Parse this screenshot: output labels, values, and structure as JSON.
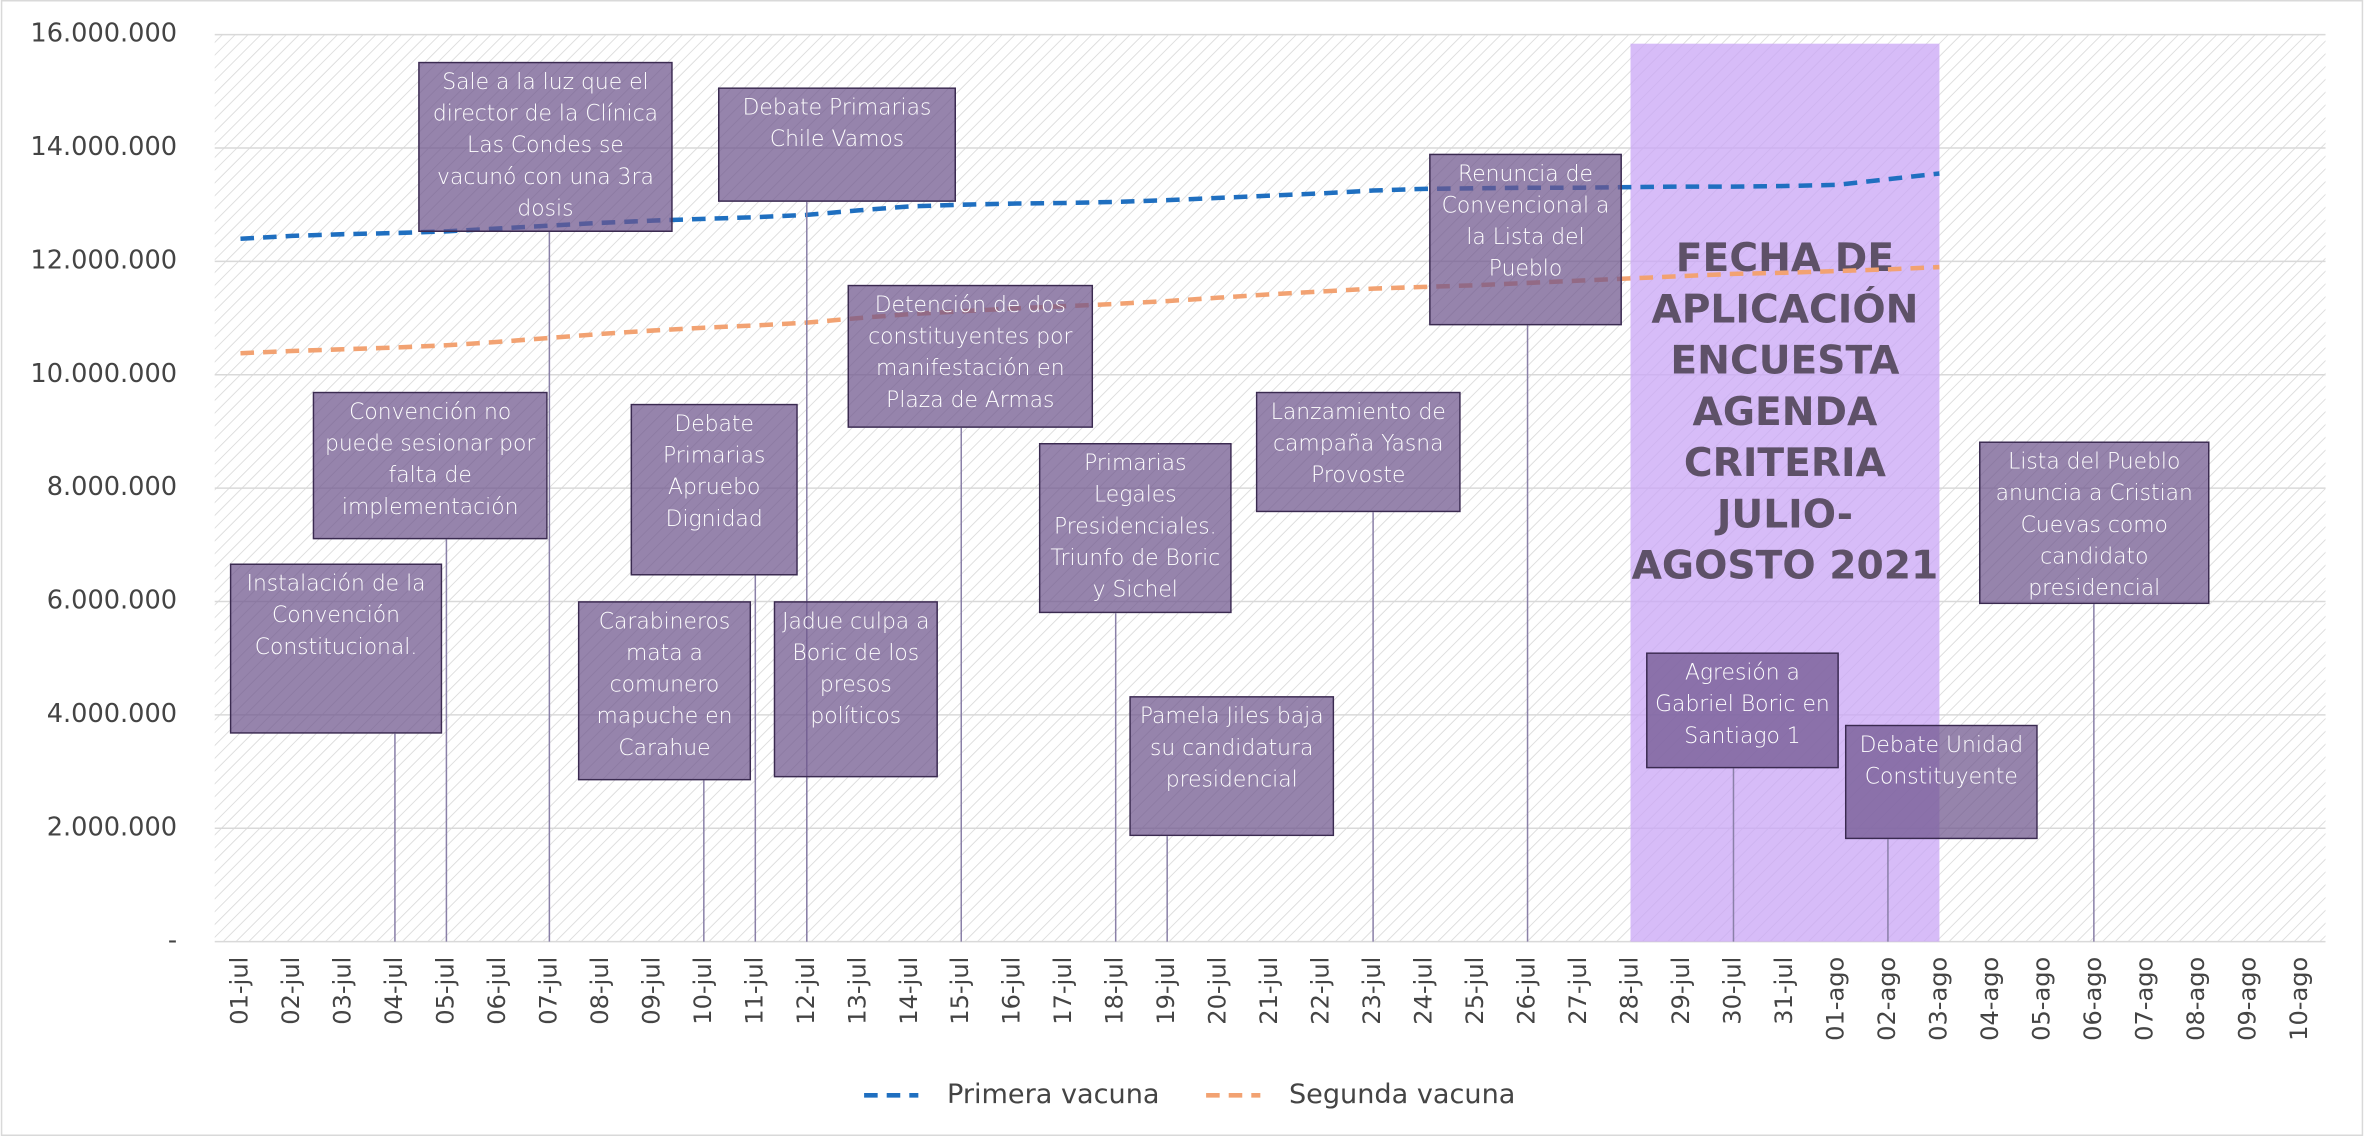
{
  "chart_data": {
    "type": "line",
    "categories": [
      "01-jul",
      "02-jul",
      "03-jul",
      "04-jul",
      "05-jul",
      "06-jul",
      "07-jul",
      "08-jul",
      "09-jul",
      "10-jul",
      "11-jul",
      "12-jul",
      "13-jul",
      "14-jul",
      "15-jul",
      "16-jul",
      "17-jul",
      "18-jul",
      "19-jul",
      "20-jul",
      "21-jul",
      "22-jul",
      "23-jul",
      "24-jul",
      "25-jul",
      "26-jul",
      "27-jul",
      "28-jul",
      "29-jul",
      "30-jul",
      "31-jul",
      "01-ago",
      "02-ago",
      "03-ago",
      "04-ago",
      "05-ago",
      "06-ago",
      "07-ago",
      "08-ago",
      "09-ago",
      "10-ago"
    ],
    "series": [
      {
        "name": "Primera vacuna",
        "color": "#1f6fc0",
        "values": [
          12400000,
          12450000,
          12480000,
          12500000,
          12530000,
          12580000,
          12630000,
          12680000,
          12720000,
          12750000,
          12780000,
          12820000,
          12900000,
          12970000,
          13000000,
          13020000,
          13030000,
          13050000,
          13080000,
          13120000,
          13160000,
          13200000,
          13250000,
          13280000,
          13290000,
          13300000,
          13300000,
          13310000,
          13320000,
          13320000,
          13330000,
          13350000,
          13450000,
          13550000,
          null,
          null,
          null,
          null,
          null,
          null,
          null
        ]
      },
      {
        "name": "Segunda vacuna",
        "color": "#f2a272",
        "values": [
          10380000,
          10420000,
          10450000,
          10480000,
          10520000,
          10580000,
          10650000,
          10720000,
          10780000,
          10830000,
          10870000,
          10920000,
          11000000,
          11070000,
          11120000,
          11170000,
          11210000,
          11250000,
          11300000,
          11360000,
          11420000,
          11470000,
          11520000,
          11550000,
          11580000,
          11620000,
          11660000,
          11700000,
          11740000,
          11780000,
          11800000,
          11830000,
          11860000,
          11900000,
          null,
          null,
          null,
          null,
          null,
          null,
          null
        ]
      }
    ],
    "ylim": [
      0,
      16000000
    ],
    "yticks": [
      {
        "value": 0,
        "label": "-"
      },
      {
        "value": 2000000,
        "label": "2.000.000"
      },
      {
        "value": 4000000,
        "label": "4.000.000"
      },
      {
        "value": 6000000,
        "label": "6.000.000"
      },
      {
        "value": 8000000,
        "label": "8.000.000"
      },
      {
        "value": 10000000,
        "label": "10.000.000"
      },
      {
        "value": 12000000,
        "label": "12.000.000"
      },
      {
        "value": 14000000,
        "label": "14.000.000"
      },
      {
        "value": 16000000,
        "label": "16.000.000"
      }
    ],
    "grid": true,
    "legend": "bottom",
    "highlight": {
      "text": "FECHA DE APLICACIÓN ENCUESTA AGENDA CRITERIA JULIO-AGOSTO 2021",
      "from": "28-jul",
      "to": "03-ago",
      "color": "#c9a6f5"
    },
    "annotations": [
      {
        "text": "Instalación de la Convención Constitucional.",
        "category": "04-jul"
      },
      {
        "text": "Convención no puede sesionar por falta de implementación",
        "category": "05-jul"
      },
      {
        "text": "Sale a la luz que el director de la Clínica Las Condes se vacunó con una 3ra dosis",
        "category": "07-jul"
      },
      {
        "text": "Carabineros mata a comunero mapuche en Carahue",
        "category": "10-jul"
      },
      {
        "text": "Debate Primarias Apruebo Dignidad",
        "category": "11-jul"
      },
      {
        "text": "Debate Primarias Chile Vamos",
        "category": "12-jul"
      },
      {
        "text": "Jadue culpa a Boric de los presos políticos",
        "category": "12-jul"
      },
      {
        "text": "Detención de dos constituyentes por manifestación en Plaza de Armas",
        "category": "15-jul"
      },
      {
        "text": "Primarias Legales Presidenciales. Triunfo de Boric y Sichel",
        "category": "18-jul"
      },
      {
        "text": "Pamela Jiles baja su candidatura presidencial",
        "category": "19-jul"
      },
      {
        "text": "Lanzamiento de campaña Yasna Provoste",
        "category": "23-jul"
      },
      {
        "text": "Renuncia de Convencional a la Lista del Pueblo",
        "category": "26-jul"
      },
      {
        "text": "Agresión a Gabriel Boric en Santiago 1",
        "category": "30-jul"
      },
      {
        "text": "Debate Unidad Constituyente",
        "category": "02-ago"
      },
      {
        "text": "Lista del Pueblo anuncia a Cristian Cuevas como candidato presidencial",
        "category": "06-ago"
      }
    ]
  }
}
